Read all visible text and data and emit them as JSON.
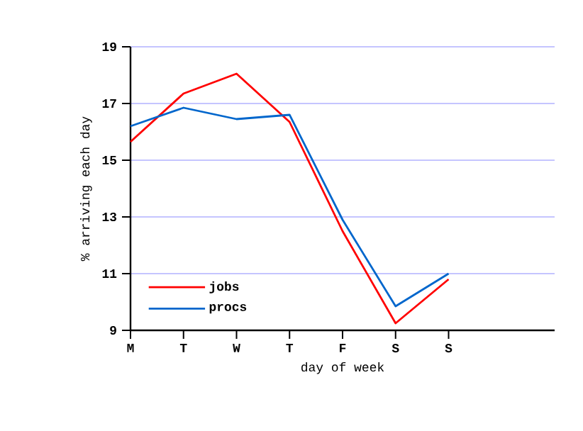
{
  "chart_data": {
    "type": "line",
    "xlabel": "day of week",
    "ylabel": "% arriving each day",
    "categories": [
      "M",
      "T",
      "W",
      "T",
      "F",
      "S",
      "S"
    ],
    "series": [
      {
        "name": "jobs",
        "color": "#ff0000",
        "values": [
          15.65,
          17.35,
          18.05,
          16.35,
          12.5,
          9.25,
          10.8
        ]
      },
      {
        "name": "procs",
        "color": "#0066cc",
        "values": [
          16.2,
          16.85,
          16.45,
          16.6,
          12.9,
          9.85,
          11.0
        ]
      }
    ],
    "ylim": [
      9,
      19
    ],
    "yticks": [
      9,
      11,
      13,
      15,
      17,
      19
    ],
    "grid": "y",
    "legend": "bottom left",
    "marker": "none",
    "line_style": "solid"
  }
}
